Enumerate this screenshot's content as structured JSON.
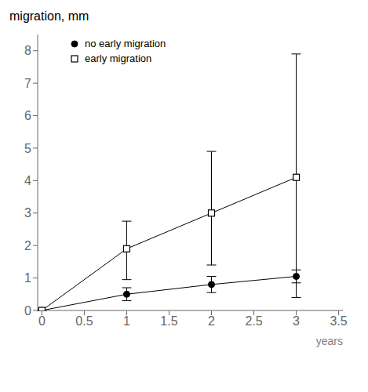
{
  "chart_data": {
    "type": "line",
    "title": "migration, mm",
    "x_label": "years",
    "x": [
      0,
      1,
      2,
      3
    ],
    "series": [
      {
        "name": "no early migration",
        "color": "#000000",
        "marker": "circle",
        "values": [
          0,
          0.5,
          0.8,
          1.05
        ],
        "errors": [
          0.0,
          0.2,
          0.25,
          0.2
        ]
      },
      {
        "name": "early migration",
        "color": "#000000",
        "marker": "square",
        "values": [
          0,
          1.9,
          3.0,
          4.1
        ],
        "errors_lower": [
          0.0,
          0.95,
          1.6,
          3.7
        ],
        "errors_upper": [
          0.0,
          0.85,
          1.9,
          3.8
        ]
      }
    ],
    "xlim": [
      -0.05,
      3.55
    ],
    "xticks": [
      0,
      0.5,
      1.0,
      1.5,
      2.0,
      2.5,
      3.0,
      3.5
    ],
    "ylim": [
      0,
      8.5
    ],
    "yticks": [
      0,
      1,
      2,
      3,
      4,
      5,
      6,
      7,
      8
    ],
    "legend": "upper left",
    "grid": false
  }
}
